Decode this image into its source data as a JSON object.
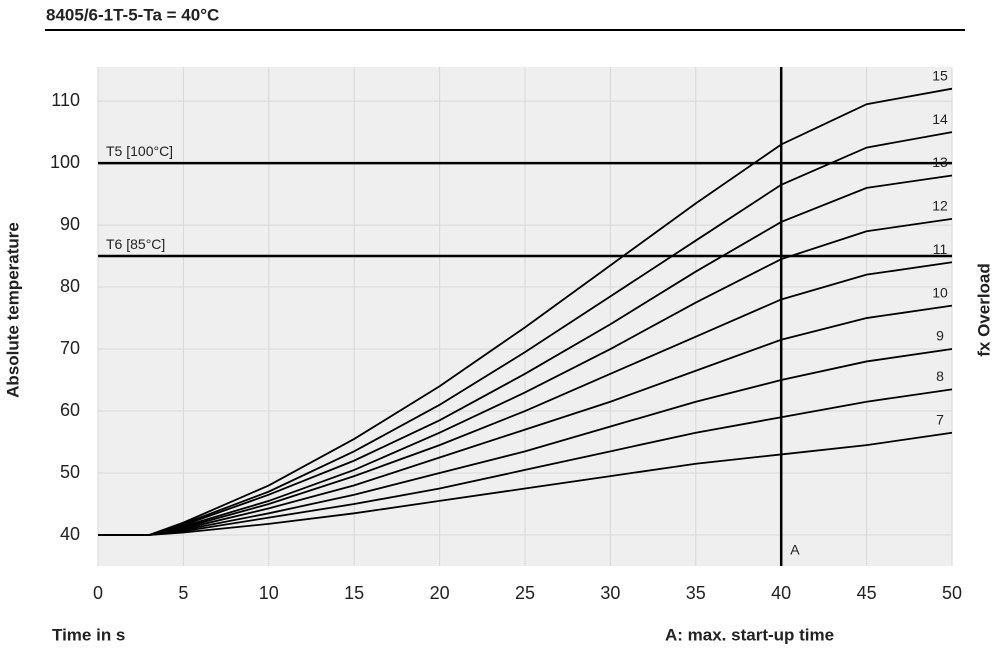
{
  "chart_data": {
    "type": "line",
    "title": "8405/6-1T-5-Ta = 40°C",
    "x_label": "Time in s",
    "y_label": "Absolute temperature",
    "y2_label": "fx Overload",
    "note": "A: max. start-up time",
    "x": [
      0,
      3,
      5,
      10,
      15,
      20,
      25,
      30,
      35,
      40,
      45,
      50
    ],
    "series": [
      {
        "name": "7",
        "color": "#000000",
        "values": [
          40,
          40,
          40.4,
          41.8,
          43.5,
          45.5,
          47.5,
          49.5,
          51.5,
          53,
          54.5,
          56.5
        ]
      },
      {
        "name": "8",
        "color": "#000000",
        "values": [
          40,
          40,
          40.6,
          42.8,
          45,
          47.5,
          50.5,
          53.5,
          56.5,
          59,
          61.5,
          63.5
        ]
      },
      {
        "name": "9",
        "color": "#000000",
        "values": [
          40,
          40,
          40.8,
          43.5,
          46.5,
          50,
          53.5,
          57.5,
          61.5,
          65,
          68,
          70
        ]
      },
      {
        "name": "10",
        "color": "#000000",
        "values": [
          40,
          40,
          41,
          44.3,
          48,
          52.5,
          57,
          61.5,
          66.5,
          71.5,
          75,
          77
        ]
      },
      {
        "name": "11",
        "color": "#000000",
        "values": [
          40,
          40,
          41.2,
          45,
          49.5,
          54.5,
          60,
          66,
          72,
          78,
          82,
          84
        ]
      },
      {
        "name": "12",
        "color": "#000000",
        "values": [
          40,
          40,
          41.4,
          45.5,
          50.5,
          56.5,
          63,
          70,
          77.5,
          84.5,
          89,
          91
        ]
      },
      {
        "name": "13",
        "color": "#000000",
        "values": [
          40,
          40,
          41.6,
          46.5,
          52,
          58.5,
          66,
          74,
          82.5,
          90.5,
          96,
          98
        ]
      },
      {
        "name": "14",
        "color": "#000000",
        "values": [
          40,
          40,
          41.8,
          47,
          53.5,
          61,
          69.5,
          78.5,
          87.5,
          96.5,
          102.5,
          105
        ]
      },
      {
        "name": "15",
        "color": "#000000",
        "values": [
          40,
          40,
          42,
          48,
          55.5,
          64,
          73.5,
          83.5,
          93.5,
          103,
          109.5,
          112
        ]
      }
    ],
    "hlines": [
      {
        "value": 100,
        "label": "T5 [100°C]"
      },
      {
        "value": 85,
        "label": "T6 [85°C]"
      }
    ],
    "vline": {
      "value": 40,
      "label": "A"
    },
    "xlim": [
      0,
      50
    ],
    "xticks": [
      0,
      5,
      10,
      15,
      20,
      25,
      30,
      35,
      40,
      45,
      50
    ],
    "ylim": [
      35,
      115.5
    ],
    "yticks": [
      40,
      50,
      60,
      70,
      80,
      90,
      100,
      110
    ],
    "grid": true
  }
}
